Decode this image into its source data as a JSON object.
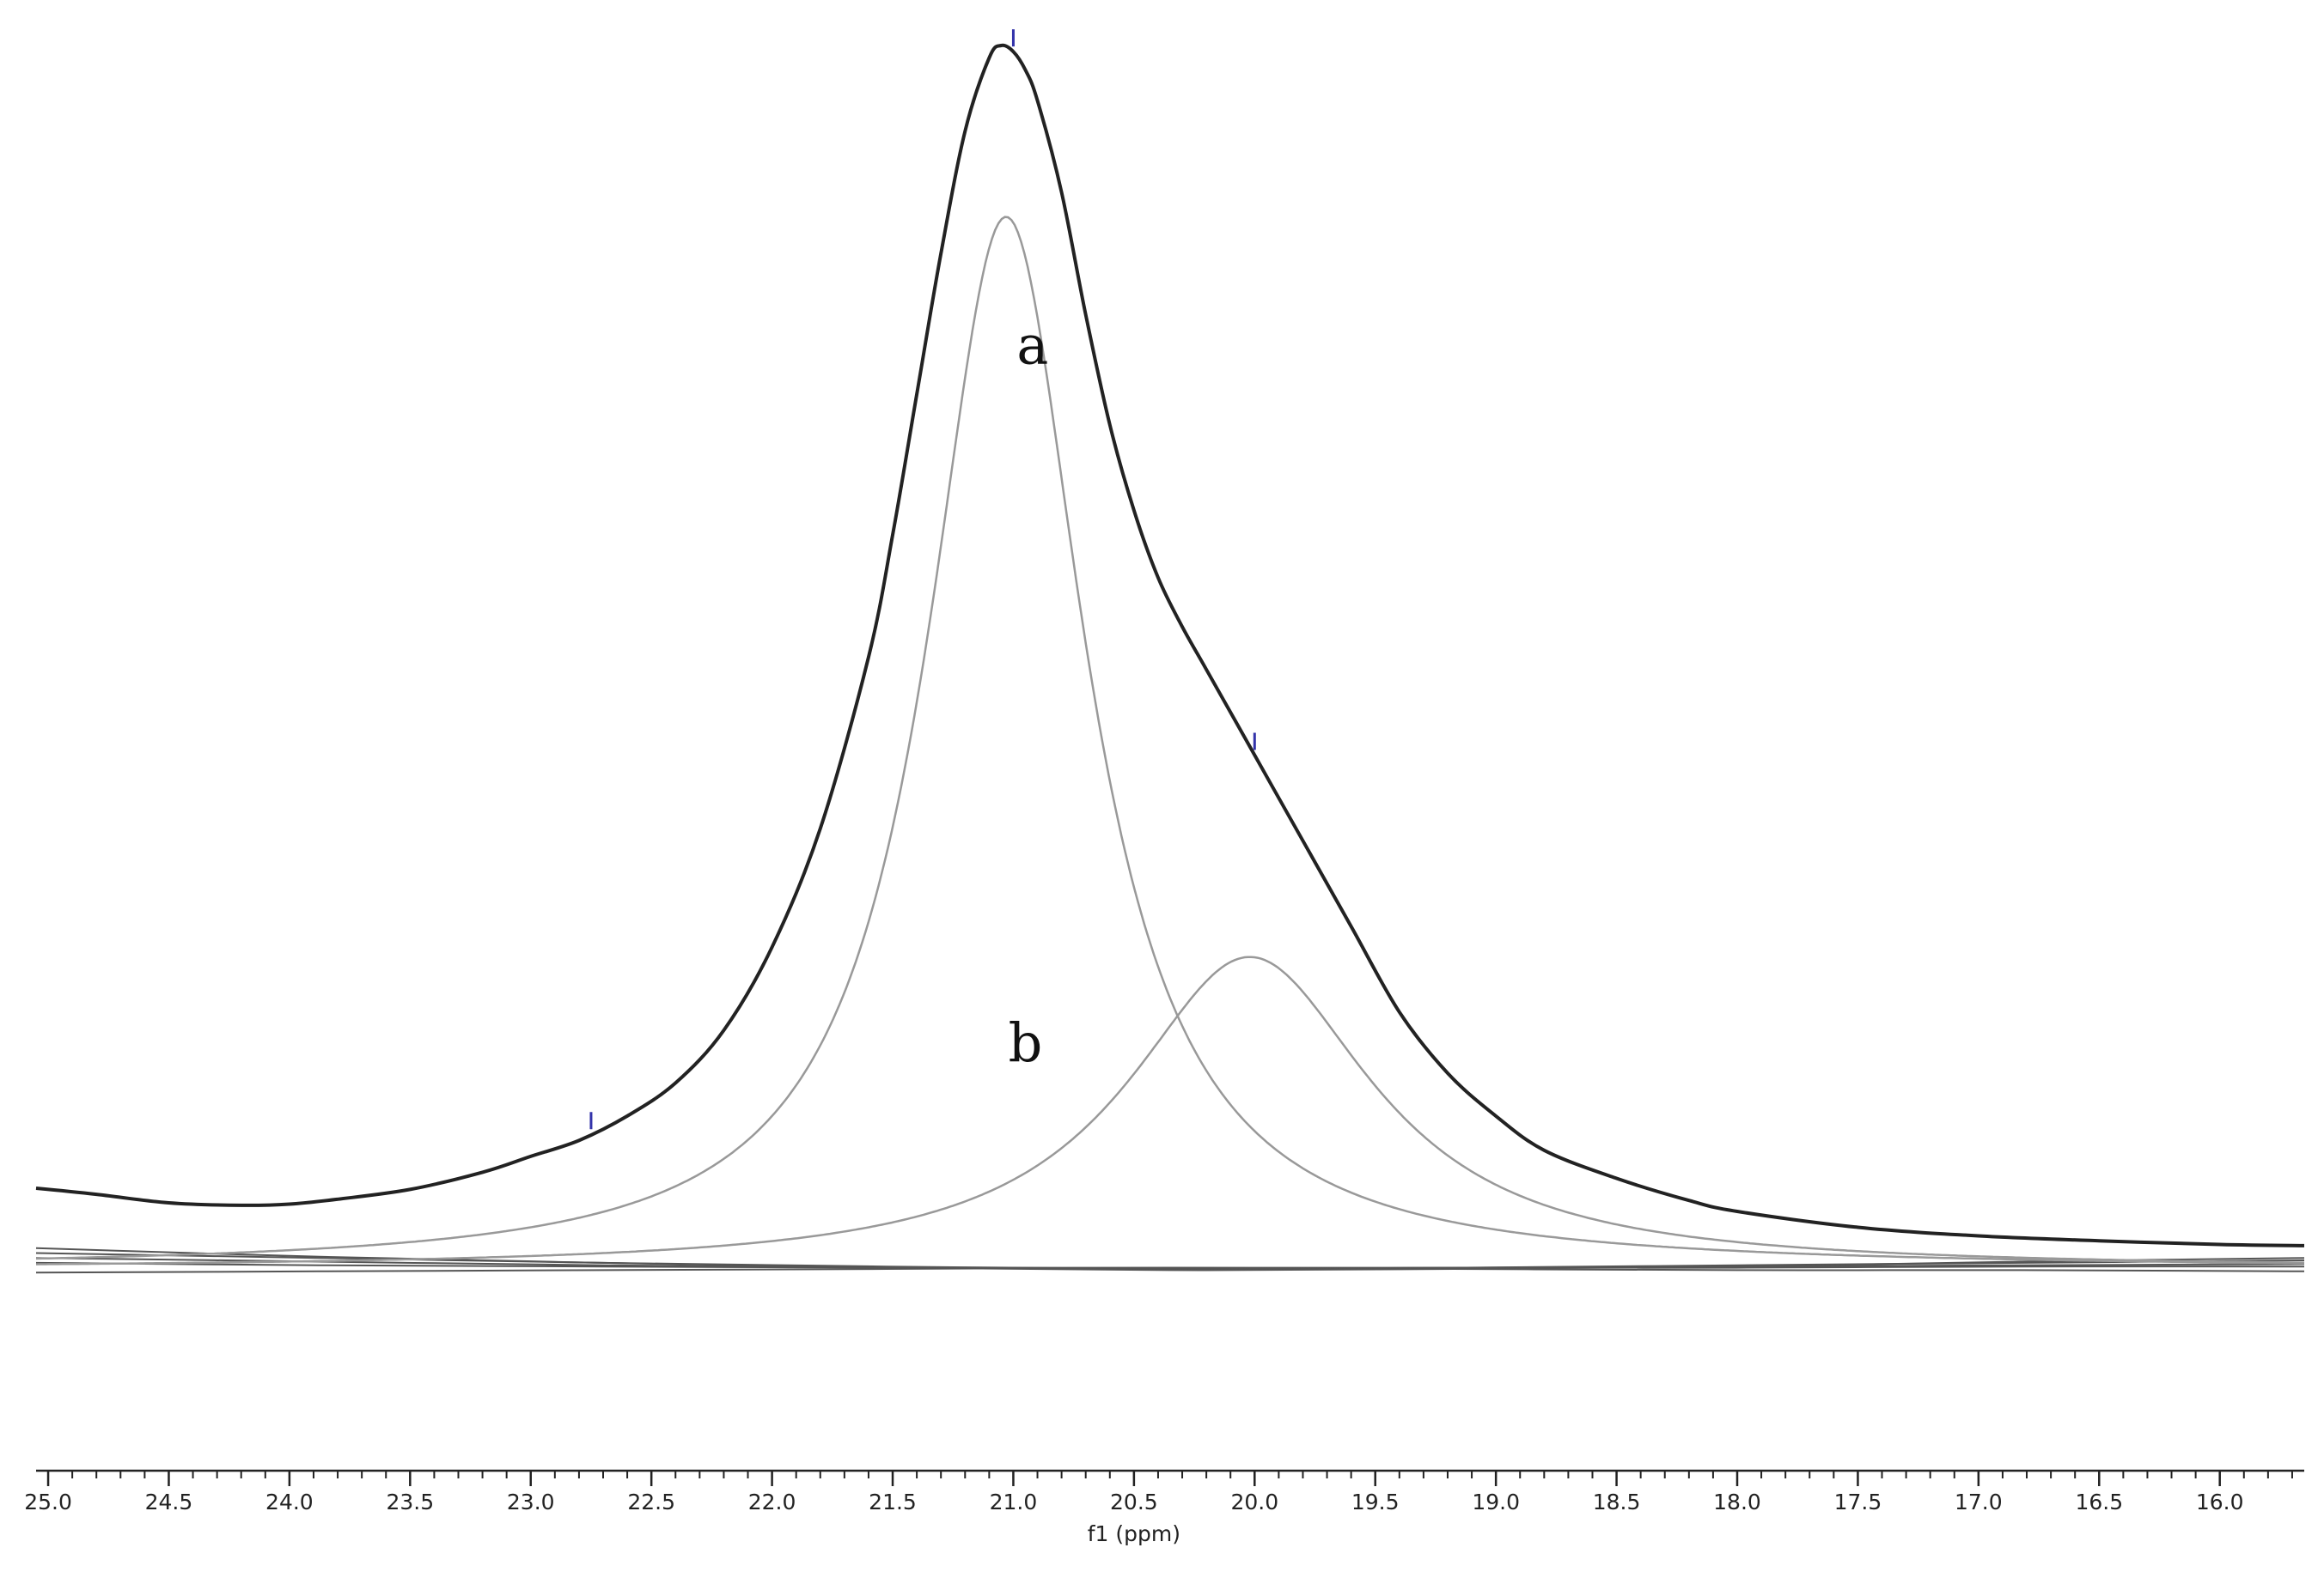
{
  "chart_data": {
    "type": "line",
    "title": "",
    "xlabel": "f1 (ppm)",
    "ylabel": "",
    "x_reversed": true,
    "xlim": [
      25.05,
      15.65
    ],
    "grid": false,
    "legend": "none",
    "x_ticks": [
      "25.0",
      "24.5",
      "24.0",
      "23.5",
      "23.0",
      "22.5",
      "22.0",
      "21.5",
      "21.0",
      "20.5",
      "20.0",
      "19.5",
      "19.0",
      "18.5",
      "18.0",
      "17.5",
      "17.0",
      "16.5",
      "16.0"
    ],
    "x_tick_values": [
      25.0,
      24.5,
      24.0,
      23.5,
      23.0,
      22.5,
      22.0,
      21.5,
      21.0,
      20.5,
      20.0,
      19.5,
      19.0,
      18.5,
      18.0,
      17.5,
      17.0,
      16.5,
      16.0
    ],
    "series": [
      {
        "role": "experimental-envelope",
        "color": "#222222",
        "x": [
          25.05,
          24.8,
          24.5,
          24.2,
          24.0,
          23.8,
          23.5,
          23.2,
          23.0,
          22.8,
          22.6,
          22.4,
          22.2,
          22.0,
          21.8,
          21.6,
          21.5,
          21.4,
          21.3,
          21.2,
          21.1,
          21.05,
          21.0,
          20.95,
          20.9,
          20.8,
          20.7,
          20.6,
          20.5,
          20.4,
          20.3,
          20.2,
          20.0,
          19.8,
          19.6,
          19.4,
          19.2,
          19.0,
          18.8,
          18.5,
          18.2,
          18.0,
          17.5,
          17.0,
          16.5,
          16.0,
          15.65
        ],
        "values": [
          0.066,
          0.061,
          0.054,
          0.052,
          0.053,
          0.057,
          0.065,
          0.079,
          0.092,
          0.105,
          0.125,
          0.152,
          0.195,
          0.263,
          0.36,
          0.5,
          0.6,
          0.715,
          0.83,
          0.93,
          0.99,
          1.0,
          0.995,
          0.98,
          0.955,
          0.88,
          0.78,
          0.69,
          0.62,
          0.565,
          0.525,
          0.49,
          0.42,
          0.35,
          0.28,
          0.21,
          0.16,
          0.125,
          0.097,
          0.074,
          0.056,
          0.047,
          0.034,
          0.027,
          0.023,
          0.02,
          0.019
        ]
      },
      {
        "role": "deconvolved-component",
        "label": "a",
        "color": "#999999",
        "center": 21.03,
        "amplitude": 0.86,
        "hwhm": 0.4
      },
      {
        "role": "deconvolved-component",
        "label": "b",
        "color": "#999999",
        "center": 20.02,
        "amplitude": 0.255,
        "hwhm": 0.62
      }
    ],
    "baseline_traces": {
      "color": "#555555",
      "values": [
        [
          0.009,
          0.006,
          0.003,
          0.001,
          0.0,
          0.001,
          0.002,
          0.003,
          0.004
        ],
        [
          0.013,
          0.009,
          0.005,
          0.002,
          0.0,
          0.001,
          0.003,
          0.005,
          0.007
        ],
        [
          0.005,
          0.003,
          0.002,
          0.001,
          0.001,
          0.001,
          0.001,
          0.002,
          0.002
        ],
        [
          -0.003,
          -0.002,
          -0.001,
          0.0,
          0.001,
          0.0,
          -0.001,
          -0.001,
          -0.002
        ],
        [
          0.017,
          0.01,
          0.005,
          0.001,
          -0.001,
          0.0,
          0.002,
          0.006,
          0.009
        ]
      ]
    },
    "peak_markers": {
      "color": "#3333aa",
      "x": [
        22.75,
        21.0,
        20.0
      ]
    },
    "annotations": [
      {
        "text": "a",
        "x": 20.92,
        "y": 0.74
      },
      {
        "text": "b",
        "x": 20.95,
        "y": 0.17
      }
    ]
  }
}
